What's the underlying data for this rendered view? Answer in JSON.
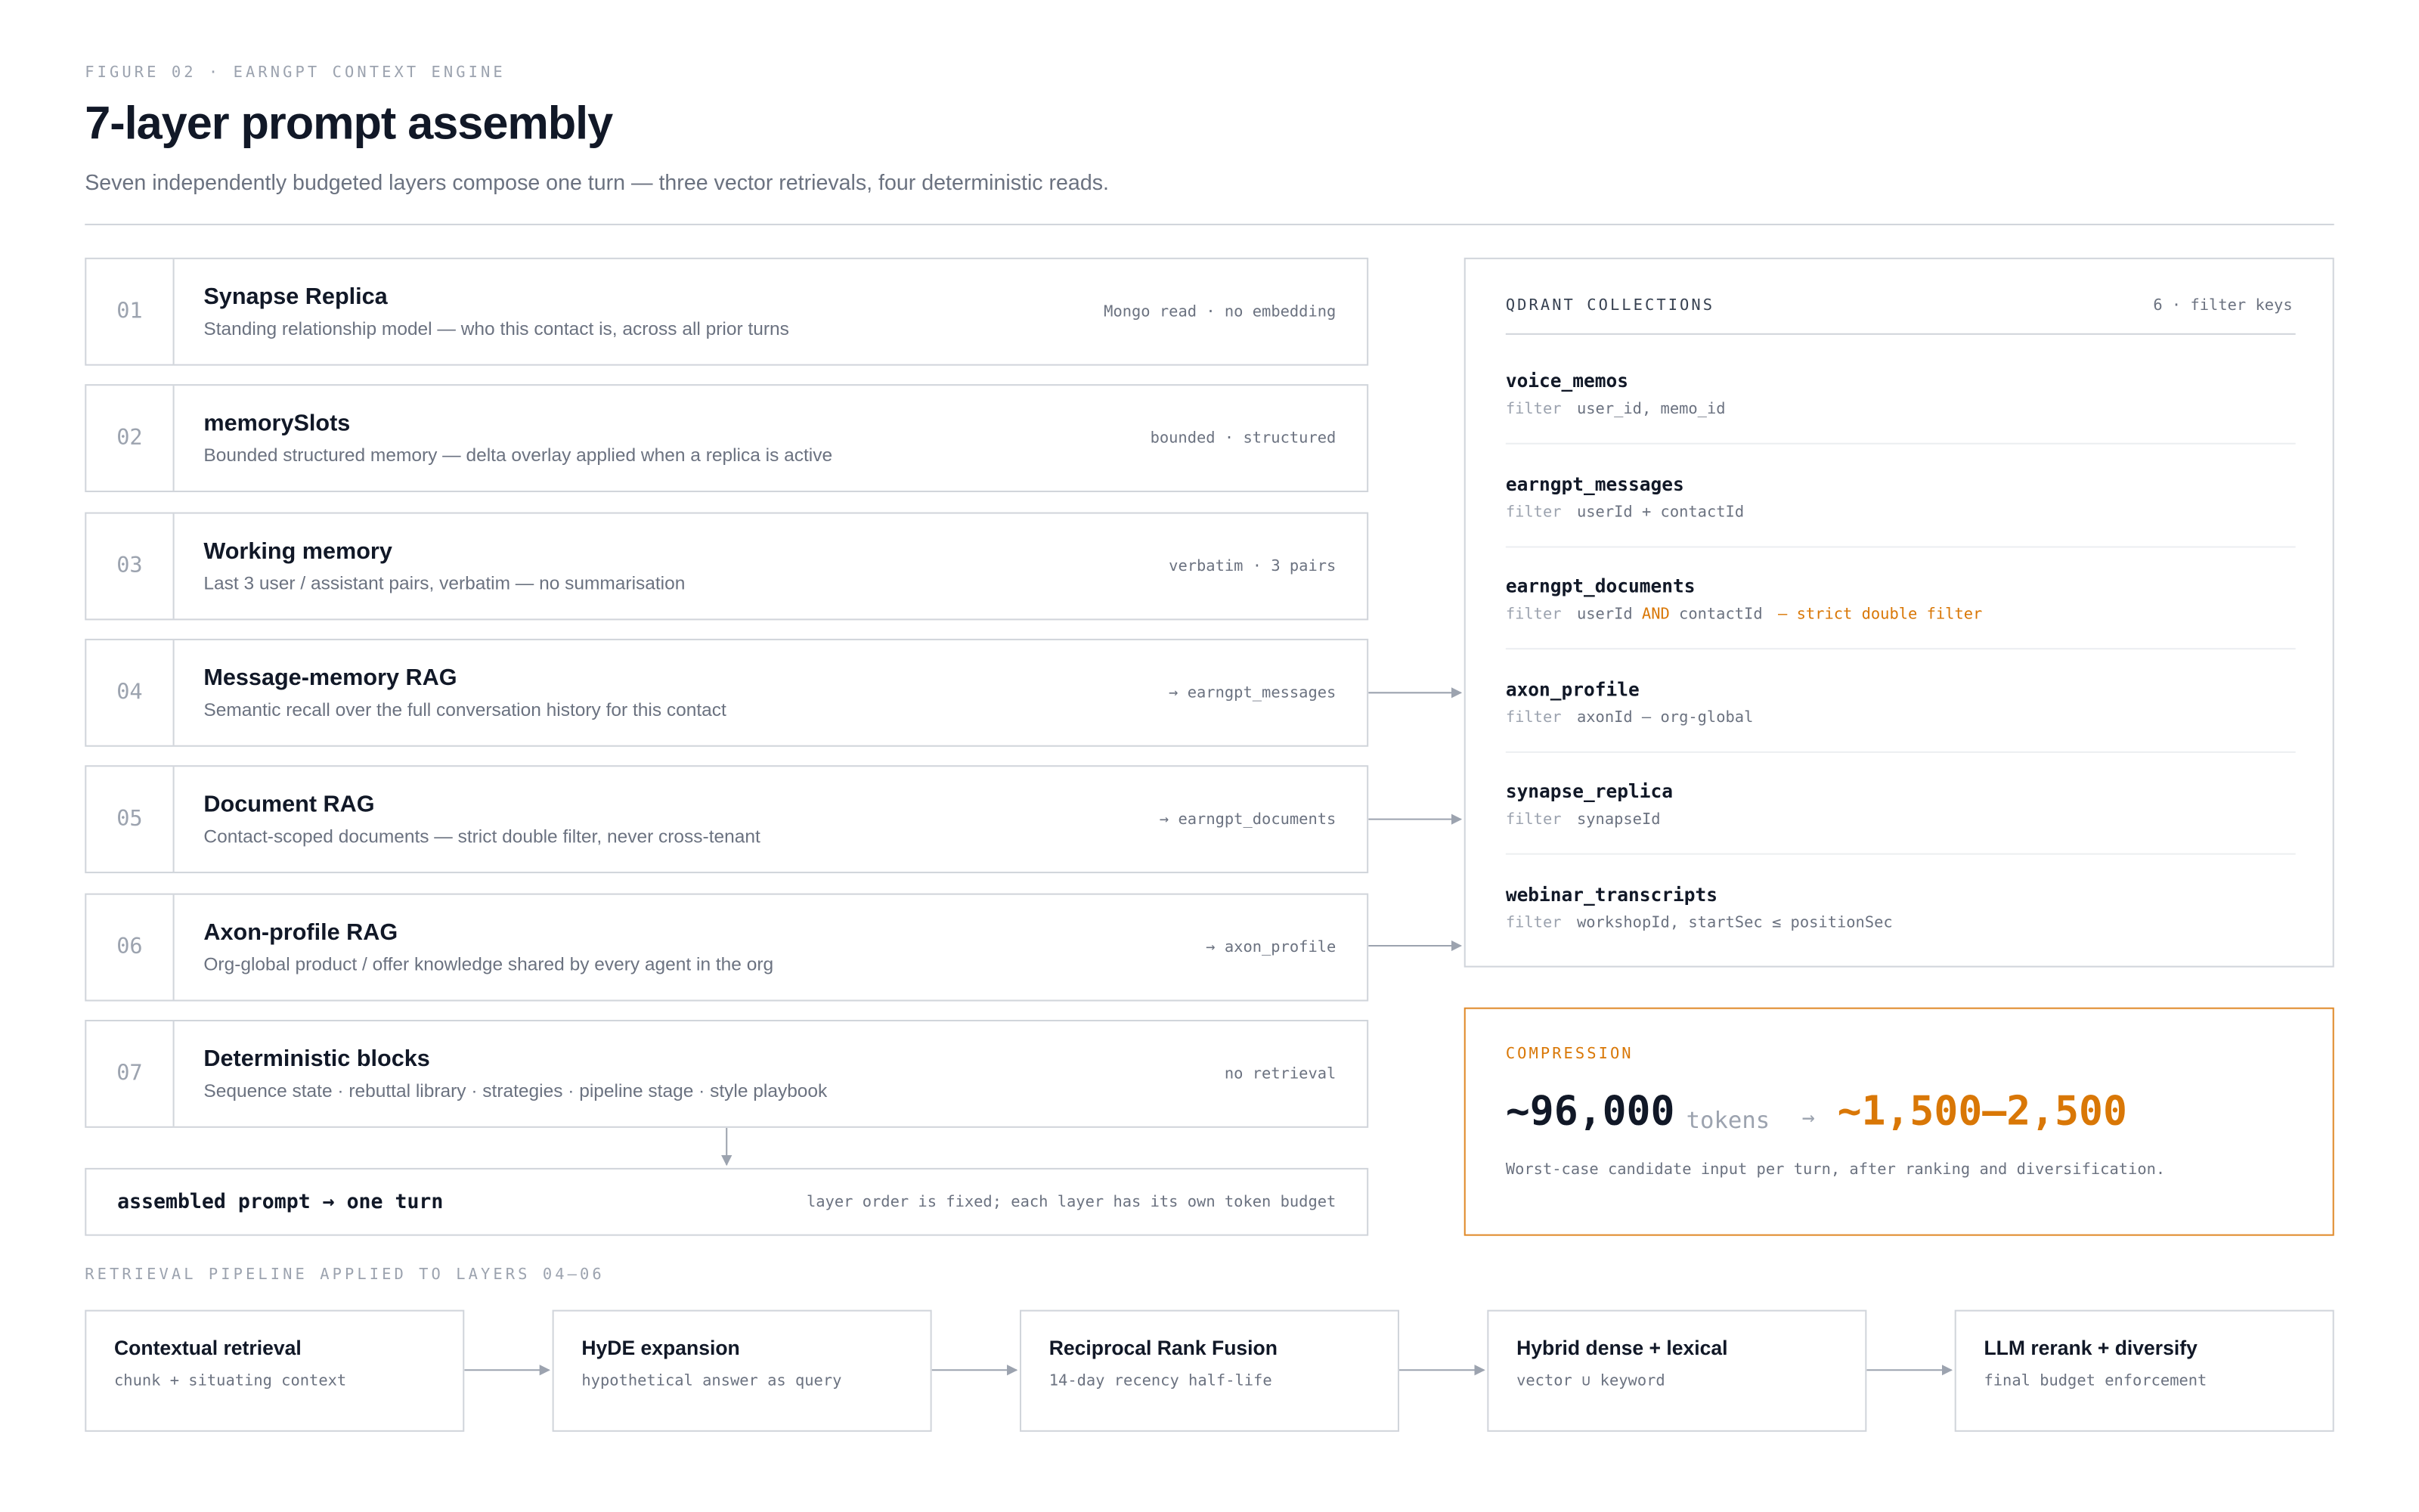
{
  "header": {
    "kicker": "FIGURE 02 · EARNGPT CONTEXT ENGINE",
    "title": "7-layer prompt assembly",
    "subtitle": "Seven independently budgeted layers compose one turn — three vector retrievals, four deterministic reads."
  },
  "layers": [
    {
      "num": "01",
      "title": "Synapse Replica",
      "desc": "Standing relationship model — who this contact is, across all prior turns",
      "tag": "Mongo read · no embedding"
    },
    {
      "num": "02",
      "title": "memorySlots",
      "desc": "Bounded structured memory — delta overlay applied when a replica is active",
      "tag": "bounded · structured"
    },
    {
      "num": "03",
      "title": "Working memory",
      "desc": "Last 3 user / assistant pairs, verbatim — no summarisation",
      "tag": "verbatim · 3 pairs"
    },
    {
      "num": "04",
      "title": "Message-memory RAG",
      "desc": "Semantic recall over the full conversation history for this contact",
      "tag": "→ earngpt_messages"
    },
    {
      "num": "05",
      "title": "Document RAG",
      "desc": "Contact-scoped documents — strict double filter, never cross-tenant",
      "tag": "→ earngpt_documents"
    },
    {
      "num": "06",
      "title": "Axon-profile RAG",
      "desc": "Org-global product / offer knowledge shared by every agent in the org",
      "tag": "→ axon_profile"
    },
    {
      "num": "07",
      "title": "Deterministic blocks",
      "desc": "Sequence state · rebuttal library · strategies · pipeline stage · style playbook",
      "tag": "no retrieval"
    }
  ],
  "assembled": {
    "title": "assembled prompt → one turn",
    "note": "layer order is fixed; each layer has its own token budget"
  },
  "qdrant": {
    "heading": "QDRANT COLLECTIONS",
    "meta": "6 · filter keys",
    "collections": [
      {
        "name": "voice_memos",
        "label": "filter",
        "filter": "user_id, memo_id"
      },
      {
        "name": "earngpt_messages",
        "label": "filter",
        "filter": "userId + contactId"
      },
      {
        "name": "earngpt_documents",
        "label": "filter",
        "filter": "userId",
        "op": "AND",
        "filter2": "contactId",
        "note": "— strict double filter"
      },
      {
        "name": "axon_profile",
        "label": "filter",
        "filter": "axonId",
        "plain_note": "— org-global"
      },
      {
        "name": "synapse_replica",
        "label": "filter",
        "filter": "synapseId"
      },
      {
        "name": "webinar_transcripts",
        "label": "filter",
        "filter": "workshopId, startSec ≤ positionSec"
      }
    ]
  },
  "compression": {
    "label": "COMPRESSION",
    "from": "~96,000",
    "unit": "tokens",
    "arrow": "→",
    "to": "~1,500–2,500",
    "desc": "Worst-case candidate input per turn, after ranking and diversification."
  },
  "pipeline": {
    "label": "RETRIEVAL PIPELINE APPLIED TO LAYERS 04–06",
    "steps": [
      {
        "title": "Contextual retrieval",
        "desc": "chunk + situating context"
      },
      {
        "title": "HyDE expansion",
        "desc": "hypothetical answer as query"
      },
      {
        "title": "Reciprocal Rank Fusion",
        "desc": "14-day recency half-life"
      },
      {
        "title": "Hybrid dense + lexical",
        "desc": "vector ∪ keyword"
      },
      {
        "title": "LLM rerank + diversify",
        "desc": "final budget enforcement"
      }
    ]
  }
}
